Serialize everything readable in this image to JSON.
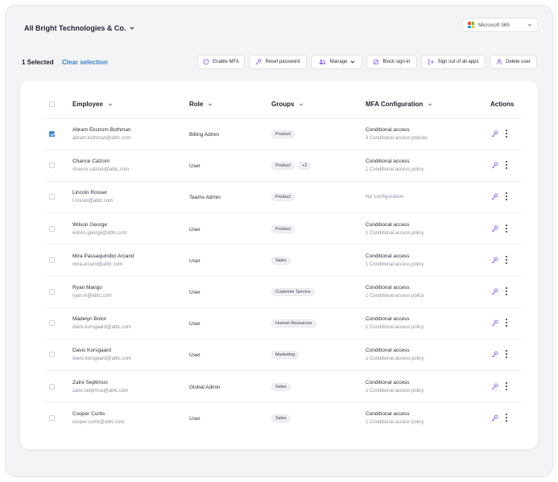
{
  "header": {
    "org_name": "All Bright Technologies & Co.",
    "tenant": "Microsoft 365"
  },
  "selection": {
    "count_label": "1 Selected",
    "clear_label": "Clear selection"
  },
  "toolbar": {
    "enable_mfa": "Enable MFA",
    "reset_password": "Reset password",
    "manage": "Manage",
    "block_signin": "Block sign-in",
    "sign_out_all": "Sign out of all apps",
    "delete_user": "Delete user"
  },
  "table": {
    "columns": {
      "employee": "Employee",
      "role": "Role",
      "groups": "Groups",
      "mfa": "MFA Configuration",
      "actions": "Actions"
    },
    "rows": [
      {
        "name": "Abram Ekstrom Bothman",
        "email": "abram.bothman@abtc.com",
        "role": "Billing Admin",
        "group": "Product",
        "extra": "",
        "mfa": "Conditional access",
        "mfa_sub": "3 Conditional access policies",
        "checked": true
      },
      {
        "name": "Chance Calzoni",
        "email": "chance.calzoni@abtc.com",
        "role": "User",
        "group": "Product",
        "extra": "+2",
        "mfa": "Conditional access",
        "mfa_sub": "1 Conditional access policy",
        "checked": false
      },
      {
        "name": "Lincoln Rosser",
        "email": "l.rosser@abtc.com",
        "role": "Teams Admin",
        "group": "Product",
        "extra": "",
        "mfa": "No configuration",
        "mfa_sub": "",
        "checked": false
      },
      {
        "name": "Wilson George",
        "email": "wilson.george@abtc.com",
        "role": "User",
        "group": "Product",
        "extra": "",
        "mfa": "Conditional access",
        "mfa_sub": "1 Conditional access policy",
        "checked": false
      },
      {
        "name": "Mira Passaquindici Arcand",
        "email": "mira.arcand@abtc.com",
        "role": "User",
        "group": "Sales",
        "extra": "",
        "mfa": "Conditional access",
        "mfa_sub": "1 Conditional access policy",
        "checked": false
      },
      {
        "name": "Ryan Mango",
        "email": "ryan.m@abtc.com",
        "role": "User",
        "group": "Customer Service",
        "extra": "",
        "mfa": "Conditional access",
        "mfa_sub": "1 Conditional access policy",
        "checked": false
      },
      {
        "name": "Madelyn Botor",
        "email": "davis.korsgaard@abtc.com",
        "role": "User",
        "group": "Human Resources",
        "extra": "",
        "mfa": "Conditional access",
        "mfa_sub": "1 Conditional access policy",
        "checked": false
      },
      {
        "name": "Davis Korsgaard",
        "email": "davis.korsgaard@abtc.com",
        "role": "User",
        "group": "Marketing",
        "extra": "",
        "mfa": "Conditional access",
        "mfa_sub": "1 Conditional access policy",
        "checked": false
      },
      {
        "name": "Zaire Septimus",
        "email": "zaire.setpimus@abtc.com",
        "role": "Global Admin",
        "group": "Sales",
        "extra": "",
        "mfa": "Conditional access",
        "mfa_sub": "1 Conditional access policy",
        "checked": false
      },
      {
        "name": "Cooper Curtis",
        "email": "cooper.curtis@abtc.com",
        "role": "User",
        "group": "Sales",
        "extra": "",
        "mfa": "Conditional access",
        "mfa_sub": "1 Conditional access policy",
        "checked": false
      }
    ]
  },
  "icons": {
    "org_chevron": "chevron-down-icon",
    "ms_logo": "microsoft-logo-icon",
    "shield": "shield-icon",
    "key": "key-icon",
    "users": "users-icon",
    "block": "block-icon",
    "signout": "sign-out-icon",
    "delete_user": "user-delete-icon",
    "sort": "sort-chevron-icon",
    "more": "more-vertical-icon"
  },
  "colors": {
    "accent_blue": "#3b82c4",
    "accent_purple": "#8b5cf6",
    "ms_red": "#f25022",
    "ms_green": "#7fba00",
    "ms_blue": "#00a4ef",
    "ms_yellow": "#ffb900"
  }
}
